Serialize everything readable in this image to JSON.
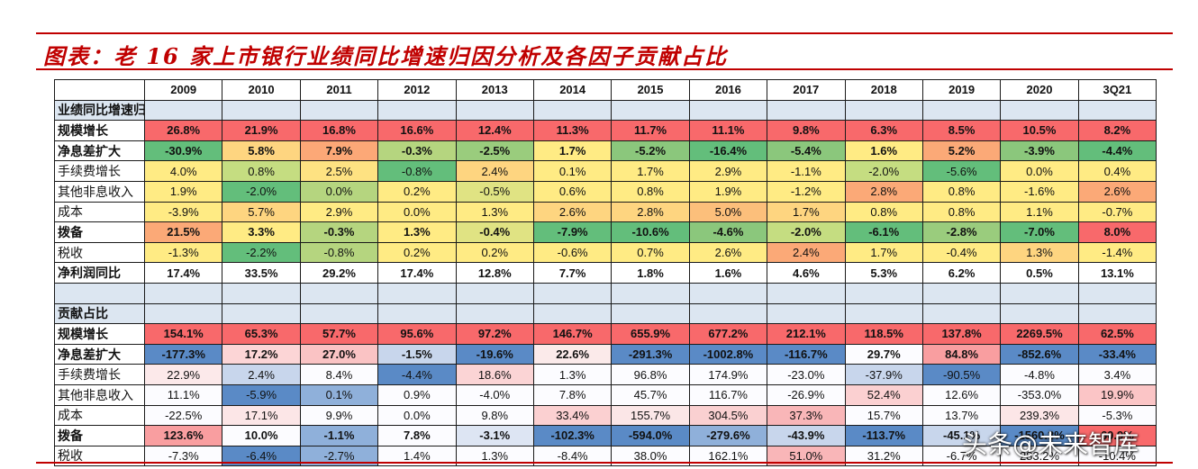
{
  "title": "图表：老 16 家上市银行业绩同比增速归因分析及各因子贡献占比",
  "watermark": "头条@未来智库",
  "columns": [
    "2009",
    "2010",
    "2011",
    "2012",
    "2013",
    "2014",
    "2015",
    "2016",
    "2017",
    "2018",
    "2019",
    "2020",
    "3Q21"
  ],
  "section1_label": "业绩同比增速归因拆解",
  "section2_label": "贡献占比",
  "section1_rows": [
    {
      "label": "规模增长",
      "bold": true,
      "cells": [
        {
          "v": "26.8%",
          "c": "#f8696b"
        },
        {
          "v": "21.9%",
          "c": "#f8696b"
        },
        {
          "v": "16.8%",
          "c": "#f8696b"
        },
        {
          "v": "16.6%",
          "c": "#f8696b"
        },
        {
          "v": "12.4%",
          "c": "#f8696b"
        },
        {
          "v": "11.3%",
          "c": "#f8696b"
        },
        {
          "v": "11.7%",
          "c": "#f8696b"
        },
        {
          "v": "11.1%",
          "c": "#f8696b"
        },
        {
          "v": "9.8%",
          "c": "#f8696b"
        },
        {
          "v": "6.3%",
          "c": "#f8696b"
        },
        {
          "v": "8.5%",
          "c": "#f8696b"
        },
        {
          "v": "10.5%",
          "c": "#f8696b"
        },
        {
          "v": "8.2%",
          "c": "#f8696b"
        }
      ]
    },
    {
      "label": "净息差扩大",
      "bold": true,
      "cells": [
        {
          "v": "-30.9%",
          "c": "#63be7b"
        },
        {
          "v": "5.8%",
          "c": "#fed580"
        },
        {
          "v": "7.9%",
          "c": "#fca877"
        },
        {
          "v": "-0.3%",
          "c": "#b5d57f"
        },
        {
          "v": "-2.5%",
          "c": "#9acc7d"
        },
        {
          "v": "1.7%",
          "c": "#ffeb84"
        },
        {
          "v": "-5.2%",
          "c": "#8bc77c"
        },
        {
          "v": "-16.4%",
          "c": "#63be7b"
        },
        {
          "v": "-5.4%",
          "c": "#8bc77c"
        },
        {
          "v": "1.6%",
          "c": "#ffeb84"
        },
        {
          "v": "5.2%",
          "c": "#fba977"
        },
        {
          "v": "-3.9%",
          "c": "#8bc77c"
        },
        {
          "v": "-4.4%",
          "c": "#63be7b"
        }
      ]
    },
    {
      "label": "手续费增长",
      "bold": false,
      "cells": [
        {
          "v": "4.0%",
          "c": "#ffeb84"
        },
        {
          "v": "0.8%",
          "c": "#c5dd81"
        },
        {
          "v": "2.5%",
          "c": "#fee282"
        },
        {
          "v": "-0.8%",
          "c": "#63be7b"
        },
        {
          "v": "2.4%",
          "c": "#fed580"
        },
        {
          "v": "0.1%",
          "c": "#ffeb84"
        },
        {
          "v": "1.7%",
          "c": "#ffeb84"
        },
        {
          "v": "2.9%",
          "c": "#ffeb84"
        },
        {
          "v": "-1.1%",
          "c": "#ffeb84"
        },
        {
          "v": "-2.0%",
          "c": "#c5dd81"
        },
        {
          "v": "-5.6%",
          "c": "#63be7b"
        },
        {
          "v": "0.0%",
          "c": "#ffeb84"
        },
        {
          "v": "0.4%",
          "c": "#ffeb84"
        }
      ]
    },
    {
      "label": "其他非息收入",
      "bold": false,
      "cells": [
        {
          "v": "1.9%",
          "c": "#ffeb84"
        },
        {
          "v": "-2.0%",
          "c": "#63be7b"
        },
        {
          "v": "0.0%",
          "c": "#b5d57f"
        },
        {
          "v": "0.2%",
          "c": "#ffeb84"
        },
        {
          "v": "-0.5%",
          "c": "#e0e383"
        },
        {
          "v": "0.6%",
          "c": "#ffeb84"
        },
        {
          "v": "0.8%",
          "c": "#ffeb84"
        },
        {
          "v": "1.9%",
          "c": "#ffeb84"
        },
        {
          "v": "-1.2%",
          "c": "#ffeb84"
        },
        {
          "v": "2.8%",
          "c": "#fba977"
        },
        {
          "v": "0.8%",
          "c": "#ffeb84"
        },
        {
          "v": "-1.6%",
          "c": "#ffeb84"
        },
        {
          "v": "2.6%",
          "c": "#fba977"
        }
      ]
    },
    {
      "label": "成本",
      "bold": false,
      "cells": [
        {
          "v": "-3.9%",
          "c": "#ffeb84"
        },
        {
          "v": "5.7%",
          "c": "#fed580"
        },
        {
          "v": "2.9%",
          "c": "#ffeb84"
        },
        {
          "v": "0.0%",
          "c": "#ffeb84"
        },
        {
          "v": "1.3%",
          "c": "#ffeb84"
        },
        {
          "v": "2.6%",
          "c": "#fed580"
        },
        {
          "v": "2.8%",
          "c": "#fed580"
        },
        {
          "v": "5.0%",
          "c": "#fcbf7b"
        },
        {
          "v": "1.7%",
          "c": "#fed580"
        },
        {
          "v": "0.8%",
          "c": "#ffeb84"
        },
        {
          "v": "0.8%",
          "c": "#ffeb84"
        },
        {
          "v": "1.1%",
          "c": "#ffeb84"
        },
        {
          "v": "-0.7%",
          "c": "#ffeb84"
        }
      ]
    },
    {
      "label": "拨备",
      "bold": true,
      "cells": [
        {
          "v": "21.5%",
          "c": "#fba977"
        },
        {
          "v": "3.3%",
          "c": "#ffeb84"
        },
        {
          "v": "-0.3%",
          "c": "#b5d57f"
        },
        {
          "v": "1.3%",
          "c": "#ffeb84"
        },
        {
          "v": "-0.4%",
          "c": "#e0e383"
        },
        {
          "v": "-7.9%",
          "c": "#63be7b"
        },
        {
          "v": "-10.6%",
          "c": "#63be7b"
        },
        {
          "v": "-4.6%",
          "c": "#8bc77c"
        },
        {
          "v": "-2.0%",
          "c": "#c5dd81"
        },
        {
          "v": "-6.1%",
          "c": "#63be7b"
        },
        {
          "v": "-2.8%",
          "c": "#9acc7d"
        },
        {
          "v": "-7.0%",
          "c": "#63be7b"
        },
        {
          "v": "8.0%",
          "c": "#f8696b"
        }
      ]
    },
    {
      "label": "税收",
      "bold": false,
      "cells": [
        {
          "v": "-1.3%",
          "c": "#ffeb84"
        },
        {
          "v": "-2.2%",
          "c": "#63be7b"
        },
        {
          "v": "-0.8%",
          "c": "#b5d57f"
        },
        {
          "v": "0.2%",
          "c": "#ffeb84"
        },
        {
          "v": "0.2%",
          "c": "#ffeb84"
        },
        {
          "v": "-0.6%",
          "c": "#ffeb84"
        },
        {
          "v": "0.7%",
          "c": "#ffeb84"
        },
        {
          "v": "2.6%",
          "c": "#ffeb84"
        },
        {
          "v": "2.4%",
          "c": "#fba977"
        },
        {
          "v": "1.7%",
          "c": "#ffeb84"
        },
        {
          "v": "-0.4%",
          "c": "#ffeb84"
        },
        {
          "v": "1.3%",
          "c": "#fed580"
        },
        {
          "v": "-1.4%",
          "c": "#ffeb84"
        }
      ]
    }
  ],
  "net_profit_row": {
    "label": "净利润同比",
    "values": [
      "17.4%",
      "33.5%",
      "29.2%",
      "17.4%",
      "12.8%",
      "7.7%",
      "1.8%",
      "1.6%",
      "4.6%",
      "5.3%",
      "6.2%",
      "0.5%",
      "13.1%"
    ]
  },
  "section2_rows": [
    {
      "label": "规模增长",
      "bold": true,
      "cells": [
        {
          "v": "154.1%",
          "c": "#f8696b"
        },
        {
          "v": "65.3%",
          "c": "#f8696b"
        },
        {
          "v": "57.7%",
          "c": "#f8696b"
        },
        {
          "v": "95.6%",
          "c": "#f8696b"
        },
        {
          "v": "97.2%",
          "c": "#f8696b"
        },
        {
          "v": "146.7%",
          "c": "#f8696b"
        },
        {
          "v": "655.9%",
          "c": "#f8696b"
        },
        {
          "v": "677.2%",
          "c": "#f8696b"
        },
        {
          "v": "212.1%",
          "c": "#f8696b"
        },
        {
          "v": "118.5%",
          "c": "#f8696b"
        },
        {
          "v": "137.8%",
          "c": "#f8696b"
        },
        {
          "v": "2269.5%",
          "c": "#f8696b"
        },
        {
          "v": "62.5%",
          "c": "#f8696b"
        }
      ]
    },
    {
      "label": "净息差扩大",
      "bold": true,
      "cells": [
        {
          "v": "-177.3%",
          "c": "#5a8ac6"
        },
        {
          "v": "17.2%",
          "c": "#fcd5d6"
        },
        {
          "v": "27.0%",
          "c": "#fac3c4"
        },
        {
          "v": "-1.5%",
          "c": "#c8d6ec"
        },
        {
          "v": "-19.6%",
          "c": "#5a8ac6"
        },
        {
          "v": "22.6%",
          "c": "#fbeaea"
        },
        {
          "v": "-291.3%",
          "c": "#5a8ac6"
        },
        {
          "v": "-1002.8%",
          "c": "#5a8ac6"
        },
        {
          "v": "-116.7%",
          "c": "#5a8ac6"
        },
        {
          "v": "29.7%",
          "c": "#fcfcff"
        },
        {
          "v": "84.8%",
          "c": "#f99ea0"
        },
        {
          "v": "-852.6%",
          "c": "#5a8ac6"
        },
        {
          "v": "-33.4%",
          "c": "#5a8ac6"
        }
      ]
    },
    {
      "label": "手续费增长",
      "bold": false,
      "cells": [
        {
          "v": "22.9%",
          "c": "#fce9ea"
        },
        {
          "v": "2.4%",
          "c": "#c8d6ec"
        },
        {
          "v": "8.4%",
          "c": "#fcfcff"
        },
        {
          "v": "-4.4%",
          "c": "#5a8ac6"
        },
        {
          "v": "18.6%",
          "c": "#fbd4d5"
        },
        {
          "v": "1.3%",
          "c": "#fcfcff"
        },
        {
          "v": "96.8%",
          "c": "#fcfcff"
        },
        {
          "v": "174.9%",
          "c": "#fcfcff"
        },
        {
          "v": "-23.0%",
          "c": "#fcfcff"
        },
        {
          "v": "-37.9%",
          "c": "#c8d6ec"
        },
        {
          "v": "-90.5%",
          "c": "#5a8ac6"
        },
        {
          "v": "-4.8%",
          "c": "#fcfcff"
        },
        {
          "v": "3.4%",
          "c": "#fcfcff"
        }
      ]
    },
    {
      "label": "其他非息收入",
      "bold": false,
      "cells": [
        {
          "v": "11.1%",
          "c": "#fcfcff"
        },
        {
          "v": "-5.9%",
          "c": "#5a8ac6"
        },
        {
          "v": "0.1%",
          "c": "#8fb0da"
        },
        {
          "v": "0.9%",
          "c": "#fcfcff"
        },
        {
          "v": "-4.0%",
          "c": "#fcfcff"
        },
        {
          "v": "7.8%",
          "c": "#fcfcff"
        },
        {
          "v": "45.7%",
          "c": "#fcfcff"
        },
        {
          "v": "116.7%",
          "c": "#fcfcff"
        },
        {
          "v": "-26.9%",
          "c": "#fcfcff"
        },
        {
          "v": "52.4%",
          "c": "#fbd0d1"
        },
        {
          "v": "12.6%",
          "c": "#fcfcff"
        },
        {
          "v": "-353.0%",
          "c": "#fcfcff"
        },
        {
          "v": "19.9%",
          "c": "#fbc5c6"
        }
      ]
    },
    {
      "label": "成本",
      "bold": false,
      "cells": [
        {
          "v": "-22.5%",
          "c": "#fcfcff"
        },
        {
          "v": "17.1%",
          "c": "#fce6e7"
        },
        {
          "v": "9.9%",
          "c": "#fcfcff"
        },
        {
          "v": "0.0%",
          "c": "#fcfcff"
        },
        {
          "v": "9.8%",
          "c": "#fcfcff"
        },
        {
          "v": "33.4%",
          "c": "#fbd0d1"
        },
        {
          "v": "155.7%",
          "c": "#fbe6e7"
        },
        {
          "v": "304.5%",
          "c": "#fad0d1"
        },
        {
          "v": "37.3%",
          "c": "#f9b6b8"
        },
        {
          "v": "15.7%",
          "c": "#fcfcff"
        },
        {
          "v": "13.7%",
          "c": "#fcfcff"
        },
        {
          "v": "239.3%",
          "c": "#fce6e7"
        },
        {
          "v": "-5.3%",
          "c": "#fcfcff"
        }
      ]
    },
    {
      "label": "拨备",
      "bold": true,
      "cells": [
        {
          "v": "123.6%",
          "c": "#f99ea0"
        },
        {
          "v": "10.0%",
          "c": "#fcfcff"
        },
        {
          "v": "-1.1%",
          "c": "#8fb0da"
        },
        {
          "v": "7.8%",
          "c": "#fcfcff"
        },
        {
          "v": "-3.1%",
          "c": "#dde5f3"
        },
        {
          "v": "-102.3%",
          "c": "#5a8ac6"
        },
        {
          "v": "-594.0%",
          "c": "#5a8ac6"
        },
        {
          "v": "-279.6%",
          "c": "#8fb0da"
        },
        {
          "v": "-43.9%",
          "c": "#c8d6ec"
        },
        {
          "v": "-113.7%",
          "c": "#5a8ac6"
        },
        {
          "v": "-45.1%",
          "c": "#c8d6ec"
        },
        {
          "v": "-1560.3%",
          "c": "#5a8ac6"
        },
        {
          "v": "60.9%",
          "c": "#f8696b"
        }
      ]
    },
    {
      "label": "税收",
      "bold": false,
      "cells": [
        {
          "v": "-7.3%",
          "c": "#fcfcff"
        },
        {
          "v": "-6.4%",
          "c": "#5a8ac6"
        },
        {
          "v": "-2.7%",
          "c": "#8fb0da"
        },
        {
          "v": "1.4%",
          "c": "#fcfcff"
        },
        {
          "v": "1.3%",
          "c": "#fcfcff"
        },
        {
          "v": "-8.4%",
          "c": "#fcfcff"
        },
        {
          "v": "38.0%",
          "c": "#fcfcff"
        },
        {
          "v": "162.1%",
          "c": "#fcfcff"
        },
        {
          "v": "51.0%",
          "c": "#f9b6b8"
        },
        {
          "v": "31.2%",
          "c": "#fcfcff"
        },
        {
          "v": "-6.7%",
          "c": "#fcfcff"
        },
        {
          "v": "283.2%",
          "c": "#fcfcff"
        },
        {
          "v": "-10.4%",
          "c": "#fcfcff"
        }
      ]
    }
  ]
}
